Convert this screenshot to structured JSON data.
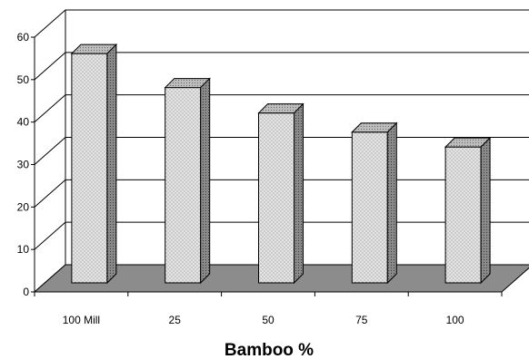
{
  "chart_data": {
    "type": "bar",
    "title": "",
    "xlabel": "Bamboo %",
    "ylabel": "",
    "ylim": [
      0,
      60
    ],
    "yticks": [
      "0",
      "10",
      "20",
      "30",
      "40",
      "50",
      "60"
    ],
    "categories": [
      "100 Mill",
      "25",
      "50",
      "75",
      "100"
    ],
    "values": [
      54,
      46,
      40,
      35.5,
      32
    ],
    "grid": true,
    "legend": "none",
    "style": "3d-column",
    "colors": {
      "bar_front": "#e4e4e4",
      "bar_top": "#bdbdbd",
      "bar_side": "#8a8a8a",
      "floor": "#8c8c8c",
      "outline": "#000000"
    }
  }
}
